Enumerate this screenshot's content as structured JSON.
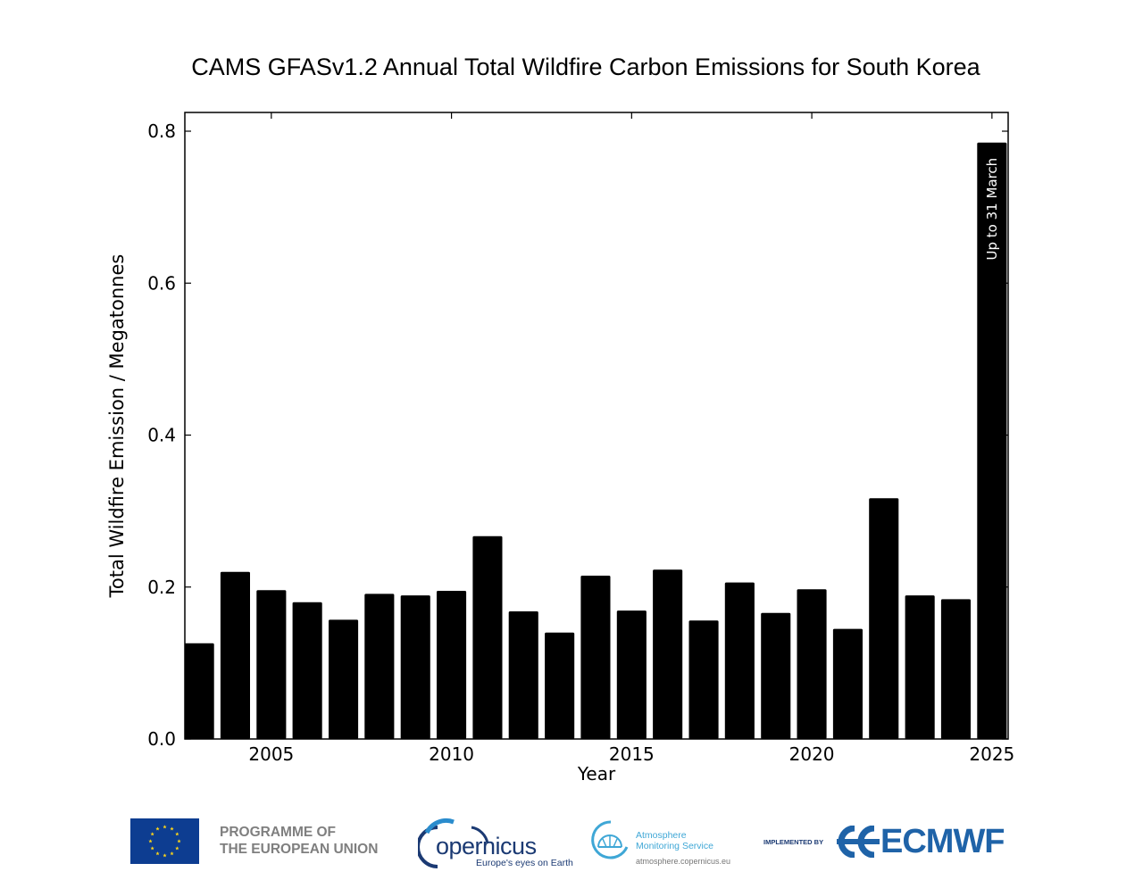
{
  "chart_data": {
    "type": "bar",
    "title": "CAMS GFASv1.2 Annual Total Wildfire Carbon Emissions for South Korea",
    "xlabel": "Year",
    "ylabel": "Total Wildfire Emission / Megatonnes",
    "categories": [
      2003,
      2004,
      2005,
      2006,
      2007,
      2008,
      2009,
      2010,
      2011,
      2012,
      2013,
      2014,
      2015,
      2016,
      2017,
      2018,
      2019,
      2020,
      2021,
      2022,
      2023,
      2024,
      2025
    ],
    "values": [
      0.126,
      0.22,
      0.196,
      0.18,
      0.157,
      0.191,
      0.189,
      0.195,
      0.267,
      0.168,
      0.14,
      0.215,
      0.169,
      0.223,
      0.156,
      0.206,
      0.166,
      0.197,
      0.145,
      0.317,
      0.189,
      0.184,
      0.785
    ],
    "xlim": [
      2002.6,
      2025.45
    ],
    "ylim": [
      0,
      0.8
    ],
    "yticks": [
      0.0,
      0.2,
      0.4,
      0.6,
      0.8
    ],
    "ytick_labels": [
      "0.0",
      "0.2",
      "0.4",
      "0.6",
      "0.8"
    ],
    "xticks": [
      2005,
      2010,
      2015,
      2020,
      2025
    ],
    "xtick_labels": [
      "2005",
      "2010",
      "2015",
      "2020",
      "2025"
    ],
    "bar_color": "#000000",
    "annotations": [
      {
        "x": 2025,
        "text": "Up to 31 March",
        "color": "#ffffff",
        "orientation": "vertical"
      }
    ],
    "grid": false,
    "legend": false
  },
  "footer": {
    "eu_line1": "PROGRAMME OF",
    "eu_line2": "THE EUROPEAN UNION",
    "copernicus_word": "opernicus",
    "copernicus_tagline": "Europe's eyes on Earth",
    "atmosphere_line1": "Atmosphere",
    "atmosphere_line2": "Monitoring Service",
    "atmosphere_url": "atmosphere.copernicus.eu",
    "implemented_by": "IMPLEMENTED BY",
    "ecmwf": "ECMWF",
    "colors": {
      "eu_blue": "#0d3d91",
      "eu_star": "#ffd617",
      "copernicus_navy": "#1b3a73",
      "copernicus_yellow": "#f2c21b",
      "atmosphere_blue": "#3fa7d6",
      "ecmwf_blue": "#1f63a8"
    }
  }
}
